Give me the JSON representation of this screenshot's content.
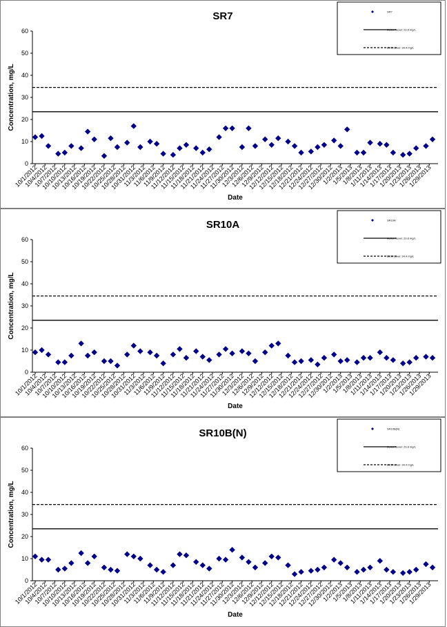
{
  "chart_data": [
    {
      "type": "scatter",
      "title": "SR7",
      "xlabel": "Date",
      "ylabel": "Concentration, mg/L",
      "ylim": [
        0,
        60
      ],
      "yticks": [
        0,
        10,
        20,
        30,
        40,
        50,
        60
      ],
      "x_tick_labels": [
        "10/1/2012",
        "10/4/2012",
        "10/7/2012",
        "10/10/2012",
        "10/13/2012",
        "10/16/2012",
        "10/19/2012",
        "10/22/2012",
        "10/25/2012",
        "10/28/2012",
        "10/31/2012",
        "11/3/2012",
        "11/6/2012",
        "11/9/2012",
        "11/12/2012",
        "11/15/2012",
        "11/18/2012",
        "11/21/2012",
        "11/24/2012",
        "11/27/2012",
        "11/30/2012",
        "12/3/2012",
        "12/6/2012",
        "12/9/2012",
        "12/12/2012",
        "12/15/2012",
        "12/18/2012",
        "12/21/2012",
        "12/24/2012",
        "12/27/2012",
        "12/30/2012",
        "1/2/2013",
        "1/5/2013",
        "1/8/2013",
        "1/11/2013",
        "1/14/2013",
        "1/17/2013",
        "1/20/2013",
        "1/23/2013",
        "1/26/2013",
        "1/29/2013"
      ],
      "x_range": [
        "10/1/2012",
        "1/30/2013"
      ],
      "series": [
        {
          "name": "SR7",
          "marker": "diamond",
          "color": "#00008b",
          "x": [
            "10/1/2012",
            "10/3/2012",
            "10/5/2012",
            "10/8/2012",
            "10/10/2012",
            "10/12/2012",
            "10/15/2012",
            "10/17/2012",
            "10/19/2012",
            "10/22/2012",
            "10/24/2012",
            "10/26/2012",
            "10/29/2012",
            "10/31/2012",
            "11/2/2012",
            "11/5/2012",
            "11/7/2012",
            "11/9/2012",
            "11/12/2012",
            "11/14/2012",
            "11/16/2012",
            "11/19/2012",
            "11/21/2012",
            "11/23/2012",
            "11/26/2012",
            "11/28/2012",
            "11/30/2012",
            "12/3/2012",
            "12/5/2012",
            "12/7/2012",
            "12/10/2012",
            "12/12/2012",
            "12/14/2012",
            "12/17/2012",
            "12/19/2012",
            "12/21/2012",
            "12/24/2012",
            "12/26/2012",
            "12/28/2012",
            "12/31/2012",
            "1/2/2013",
            "1/4/2013",
            "1/7/2013",
            "1/9/2013",
            "1/11/2013",
            "1/14/2013",
            "1/16/2013",
            "1/18/2013",
            "1/21/2013",
            "1/23/2013",
            "1/25/2013",
            "1/28/2013",
            "1/30/2013"
          ],
          "y": [
            12,
            12.5,
            8,
            4.5,
            5,
            8,
            7,
            14.5,
            11,
            3.5,
            11.5,
            7.5,
            9.5,
            17,
            7.5,
            10,
            9,
            4.5,
            4,
            7,
            8.5,
            7,
            5,
            6.5,
            12,
            16,
            16,
            7.5,
            16,
            8,
            11,
            8.5,
            11.5,
            10,
            8,
            5,
            5.5,
            7.5,
            8.5,
            10.5,
            8,
            15.5,
            5,
            5,
            9.5,
            9,
            8.5,
            5,
            4,
            4.5,
            7,
            8,
            11
          ]
        },
        {
          "name": "Action Level: 23.8 mg/L",
          "type": "hline",
          "y": 23.5,
          "style": "solid"
        },
        {
          "name": "Limit Level: 34.4 mg/L",
          "type": "hline",
          "y": 34.5,
          "style": "dashed"
        }
      ],
      "legend": {
        "placement": "top-right",
        "entries": [
          "SR7",
          "Action Level: 23.8 mg/L",
          "Limit Level: 34.4 mg/L"
        ]
      },
      "grid": false
    },
    {
      "type": "scatter",
      "title": "SR10A",
      "xlabel": "Date",
      "ylabel": "Concentration, mg/L",
      "ylim": [
        0,
        60
      ],
      "yticks": [
        0,
        10,
        20,
        30,
        40,
        50,
        60
      ],
      "x_tick_labels": [
        "10/1/2012",
        "10/4/2012",
        "10/7/2012",
        "10/10/2012",
        "10/13/2012",
        "10/16/2012",
        "10/19/2012",
        "10/22/2012",
        "10/25/2012",
        "10/28/2012",
        "10/31/2012",
        "11/3/2012",
        "11/6/2012",
        "11/9/2012",
        "11/12/2012",
        "11/15/2012",
        "11/18/2012",
        "11/21/2012",
        "11/24/2012",
        "11/27/2012",
        "11/30/2012",
        "12/3/2012",
        "12/6/2012",
        "12/9/2012",
        "12/12/2012",
        "12/15/2012",
        "12/18/2012",
        "12/21/2012",
        "12/24/2012",
        "12/27/2012",
        "12/30/2012",
        "1/2/2013",
        "1/5/2013",
        "1/8/2013",
        "1/11/2013",
        "1/14/2013",
        "1/17/2013",
        "1/20/2013",
        "1/23/2013",
        "1/26/2013",
        "1/29/2013"
      ],
      "x_range": [
        "10/1/2012",
        "1/30/2013"
      ],
      "series": [
        {
          "name": "SR10A",
          "marker": "diamond",
          "color": "#00008b",
          "x": [
            "10/1/2012",
            "10/3/2012",
            "10/5/2012",
            "10/8/2012",
            "10/10/2012",
            "10/12/2012",
            "10/15/2012",
            "10/17/2012",
            "10/19/2012",
            "10/22/2012",
            "10/24/2012",
            "10/26/2012",
            "10/29/2012",
            "10/31/2012",
            "11/2/2012",
            "11/5/2012",
            "11/7/2012",
            "11/9/2012",
            "11/12/2012",
            "11/14/2012",
            "11/16/2012",
            "11/19/2012",
            "11/21/2012",
            "11/23/2012",
            "11/26/2012",
            "11/28/2012",
            "11/30/2012",
            "12/3/2012",
            "12/5/2012",
            "12/7/2012",
            "12/10/2012",
            "12/12/2012",
            "12/14/2012",
            "12/17/2012",
            "12/19/2012",
            "12/21/2012",
            "12/24/2012",
            "12/26/2012",
            "12/28/2012",
            "12/31/2012",
            "1/2/2013",
            "1/4/2013",
            "1/7/2013",
            "1/9/2013",
            "1/11/2013",
            "1/14/2013",
            "1/16/2013",
            "1/18/2013",
            "1/21/2013",
            "1/23/2013",
            "1/25/2013",
            "1/28/2013",
            "1/30/2013"
          ],
          "y": [
            9,
            10,
            8,
            4.5,
            4.5,
            7.5,
            13,
            7.5,
            9,
            5,
            5,
            3,
            8,
            12,
            9.5,
            9,
            7.5,
            4,
            8,
            10.5,
            6.5,
            9.5,
            7,
            5.5,
            8,
            10.5,
            8.5,
            9.5,
            8.5,
            5,
            9,
            12,
            13,
            7.5,
            4.5,
            5,
            5.5,
            3.5,
            6.5,
            8,
            5,
            5.5,
            4.5,
            6.5,
            6.5,
            9,
            6.5,
            5.5,
            4,
            4.5,
            6.5,
            7,
            6.5
          ]
        },
        {
          "name": "Action Level: 23.8 mg/L",
          "type": "hline",
          "y": 23.5,
          "style": "solid"
        },
        {
          "name": "Limit Level: 34.4 mg/L",
          "type": "hline",
          "y": 34.5,
          "style": "dashed"
        }
      ],
      "legend": {
        "placement": "top-right",
        "entries": [
          "SR10A",
          "Action Level: 23.8 mg/L",
          "Limit Level: 34.4 mg/L"
        ]
      },
      "grid": false
    },
    {
      "type": "scatter",
      "title": "SR10B(N)",
      "xlabel": "Date",
      "ylabel": "Concentration, mg/L",
      "ylim": [
        0,
        60
      ],
      "yticks": [
        0,
        10,
        20,
        30,
        40,
        50,
        60
      ],
      "x_tick_labels": [
        "10/1/2012",
        "10/4/2012",
        "10/7/2012",
        "10/10/2012",
        "10/13/2012",
        "10/16/2012",
        "10/19/2012",
        "10/22/2012",
        "10/25/2012",
        "10/28/2012",
        "10/31/2012",
        "11/3/2012",
        "11/6/2012",
        "11/9/2012",
        "11/12/2012",
        "11/15/2012",
        "11/18/2012",
        "11/21/2012",
        "11/24/2012",
        "11/27/2012",
        "11/30/2012",
        "12/3/2012",
        "12/6/2012",
        "12/9/2012",
        "12/12/2012",
        "12/15/2012",
        "12/18/2012",
        "12/21/2012",
        "12/24/2012",
        "12/27/2012",
        "12/30/2012",
        "1/2/2013",
        "1/5/2013",
        "1/8/2013",
        "1/11/2013",
        "1/14/2013",
        "1/17/2013",
        "1/20/2013",
        "1/23/2013",
        "1/26/2013",
        "1/29/2013"
      ],
      "x_range": [
        "10/1/2012",
        "1/30/2013"
      ],
      "series": [
        {
          "name": "SR10B(N)",
          "marker": "diamond",
          "color": "#00008b",
          "x": [
            "10/1/2012",
            "10/3/2012",
            "10/5/2012",
            "10/8/2012",
            "10/10/2012",
            "10/12/2012",
            "10/15/2012",
            "10/17/2012",
            "10/19/2012",
            "10/22/2012",
            "10/24/2012",
            "10/26/2012",
            "10/29/2012",
            "10/31/2012",
            "11/2/2012",
            "11/5/2012",
            "11/7/2012",
            "11/9/2012",
            "11/12/2012",
            "11/14/2012",
            "11/16/2012",
            "11/19/2012",
            "11/21/2012",
            "11/23/2012",
            "11/26/2012",
            "11/28/2012",
            "11/30/2012",
            "12/3/2012",
            "12/5/2012",
            "12/7/2012",
            "12/10/2012",
            "12/12/2012",
            "12/14/2012",
            "12/17/2012",
            "12/19/2012",
            "12/21/2012",
            "12/24/2012",
            "12/26/2012",
            "12/28/2012",
            "12/31/2012",
            "1/2/2013",
            "1/4/2013",
            "1/7/2013",
            "1/9/2013",
            "1/11/2013",
            "1/14/2013",
            "1/16/2013",
            "1/18/2013",
            "1/21/2013",
            "1/23/2013",
            "1/25/2013",
            "1/28/2013",
            "1/30/2013"
          ],
          "y": [
            11,
            9.5,
            9.5,
            5,
            5.5,
            8,
            12.5,
            8,
            11,
            6,
            5,
            4.5,
            12,
            11,
            10,
            7,
            5,
            4,
            7,
            12,
            11.5,
            8.5,
            7,
            5.5,
            10,
            9.5,
            14,
            10.5,
            8.5,
            6,
            8,
            11,
            10.5,
            7,
            3,
            4,
            4.5,
            5,
            6,
            9.5,
            8,
            6,
            4,
            5,
            6,
            9,
            5,
            4,
            3.5,
            4,
            5,
            7.5,
            6
          ]
        },
        {
          "name": "Action Level: 23.8 mg/L",
          "type": "hline",
          "y": 23.5,
          "style": "solid"
        },
        {
          "name": "Limit Level: 34.4 mg/L",
          "type": "hline",
          "y": 34.5,
          "style": "dashed"
        }
      ],
      "legend": {
        "placement": "top-right",
        "entries": [
          "SR10B(N)",
          "Action Level: 23.8 mg/L",
          "Limit Level: 34.4 mg/L"
        ]
      },
      "grid": false
    }
  ]
}
